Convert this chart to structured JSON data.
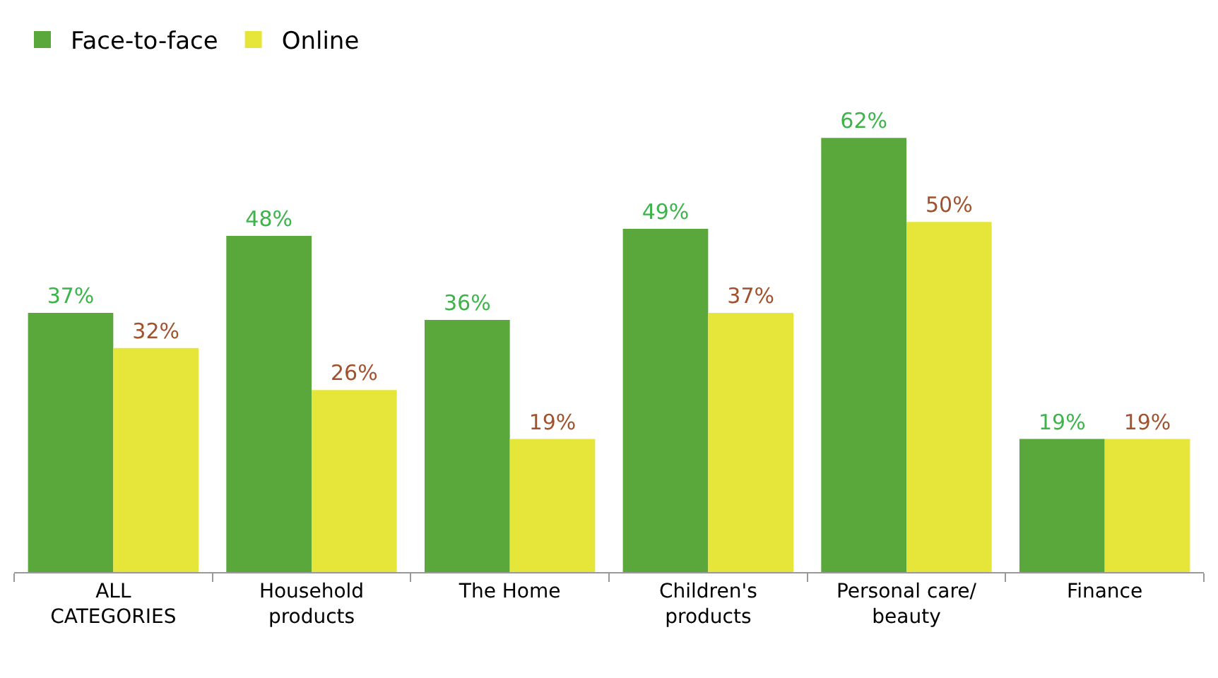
{
  "chart_data": {
    "type": "bar",
    "categories": [
      "ALL\nCATEGORIES",
      "Household\nproducts",
      "The Home",
      "Children's\nproducts",
      "Personal care/\nbeauty",
      "Finance"
    ],
    "series": [
      {
        "name": "Face-to-face",
        "color": "#5aa83c",
        "values": [
          37,
          48,
          36,
          49,
          62,
          19
        ],
        "value_labels": [
          "37%",
          "48%",
          "36%",
          "49%",
          "62%",
          "19%"
        ]
      },
      {
        "name": "Online",
        "color": "#e6e63a",
        "values": [
          32,
          26,
          19,
          37,
          50,
          19
        ],
        "value_labels": [
          "32%",
          "26%",
          "19%",
          "37%",
          "50%",
          "19%"
        ]
      }
    ],
    "legend": "top left",
    "grid": false
  }
}
